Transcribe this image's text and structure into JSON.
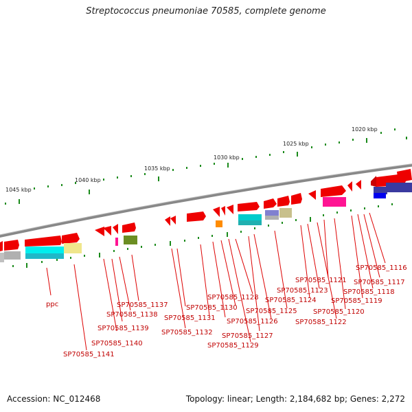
{
  "title": "Streptococcus pneumoniae 70585, complete genome",
  "footer": {
    "accession": "Accession: NC_012468",
    "summary": "Topology: linear; Length: 2,184,682 bp; Genes: 2,272"
  },
  "colors": {
    "backbone": "#8a8a8a",
    "tick": "#1a8a1a",
    "gene": "#ee0000",
    "label": "#cc0000"
  },
  "scale_labels": [
    "1020 kbp",
    "1025 kbp",
    "1030 kbp",
    "1035 kbp",
    "1040 kbp",
    "1045 kbp"
  ],
  "gene_labels": [
    "SP70585_1116",
    "SP70585_1117",
    "SP70585_1118",
    "SP70585_1119",
    "SP70585_1120",
    "SP70585_1121",
    "SP70585_1122",
    "SP70585_1123",
    "SP70585_1124",
    "SP70585_1125",
    "SP70585_1126",
    "SP70585_1127",
    "SP70585_1128",
    "SP70585_1129",
    "SP70585_1130",
    "SP70585_1131",
    "SP70585_1132",
    "SP70585_1137",
    "SP70585_1138",
    "SP70585_1139",
    "SP70585_1140",
    "SP70585_1141",
    "ppc"
  ],
  "feature_colors": [
    "#00cccc",
    "#f0e68c",
    "#ff1493",
    "#6b8e23",
    "#ff8c00",
    "#9090ff",
    "#c8c08c",
    "#3a3aa0",
    "#0000ff",
    "#b0b0b0"
  ]
}
